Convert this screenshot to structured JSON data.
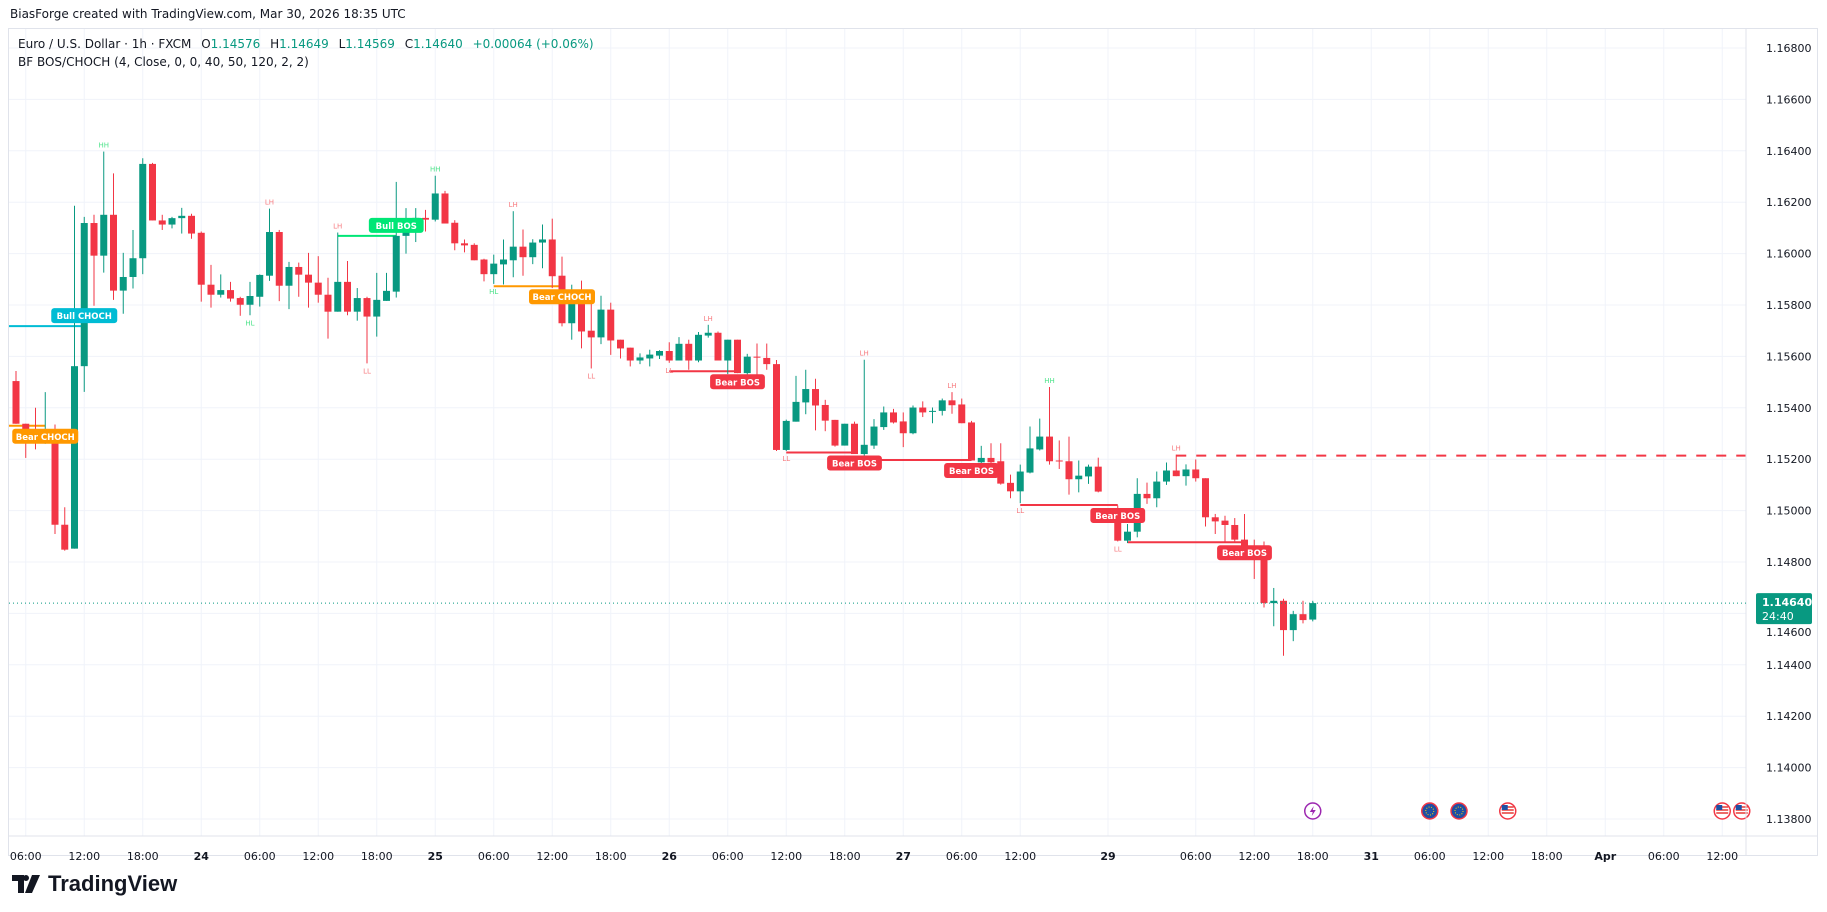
{
  "credit": "BiasForge created with TradingView.com, Mar 30, 2026 18:35 UTC",
  "legend": {
    "symbol": "Euro / U.S. Dollar · 1h · FXCM",
    "o_label": "O",
    "o": "1.14576",
    "h_label": "H",
    "h": "1.14649",
    "l_label": "L",
    "l": "1.14569",
    "c_label": "C",
    "c": "1.14640",
    "change": "+0.00064 (+0.06%)",
    "indicator": "BF BOS/CHOCH (4, Close, 0, 0, 40, 50, 120, 2, 2)"
  },
  "current_price": {
    "value": "1.14640",
    "countdown": "24:40",
    "color": "#089981"
  },
  "logo_text": "TradingView",
  "colors": {
    "up": "#089981",
    "down": "#f23645",
    "bull_choch": "#00bcd4",
    "bear_choch": "#ff9800",
    "bull_bos": "#00e676",
    "bear_bos": "#f23645",
    "swing_high_low_up": "#4de38a",
    "swing_high_low_down": "#f77c80"
  },
  "chart_data": {
    "type": "candlestick",
    "symbol": "EURUSD",
    "interval": "1h",
    "ylim": [
      1.137,
      1.1695
    ],
    "grid": true,
    "y_ticks": [
      "1.16800",
      "1.16600",
      "1.16400",
      "1.16200",
      "1.16000",
      "1.15800",
      "1.15600",
      "1.15400",
      "1.15200",
      "1.15000",
      "1.14800",
      "1.14600",
      "1.14400",
      "1.14200",
      "1.14000",
      "1.13800"
    ],
    "x_ticks": [
      {
        "label": "06:00",
        "bar": 1
      },
      {
        "label": "12:00",
        "bar": 7
      },
      {
        "label": "18:00",
        "bar": 13
      },
      {
        "label": "24",
        "bar": 19
      },
      {
        "label": "06:00",
        "bar": 25
      },
      {
        "label": "12:00",
        "bar": 31
      },
      {
        "label": "18:00",
        "bar": 37
      },
      {
        "label": "25",
        "bar": 43
      },
      {
        "label": "06:00",
        "bar": 49
      },
      {
        "label": "12:00",
        "bar": 55
      },
      {
        "label": "18:00",
        "bar": 61
      },
      {
        "label": "26",
        "bar": 67
      },
      {
        "label": "06:00",
        "bar": 73
      },
      {
        "label": "12:00",
        "bar": 79
      },
      {
        "label": "18:00",
        "bar": 85
      },
      {
        "label": "27",
        "bar": 91
      },
      {
        "label": "06:00",
        "bar": 97
      },
      {
        "label": "12:00",
        "bar": 103
      },
      {
        "label": "29",
        "bar": 112
      },
      {
        "label": "06:00",
        "bar": 121
      },
      {
        "label": "12:00",
        "bar": 127
      },
      {
        "label": "18:00",
        "bar": 133
      },
      {
        "label": "31",
        "bar": 139
      },
      {
        "label": "06:00",
        "bar": 145
      },
      {
        "label": "12:00",
        "bar": 151
      },
      {
        "label": "18:00",
        "bar": 157
      },
      {
        "label": "Apr",
        "bar": 163
      },
      {
        "label": "06:00",
        "bar": 169
      },
      {
        "label": "12:00",
        "bar": 175
      }
    ],
    "weekend_gap_after_candle": 112,
    "ohlc": [
      [
        1.15504,
        1.15543,
        1.15338,
        1.15338
      ],
      [
        1.15338,
        1.15338,
        1.15205,
        1.15299
      ],
      [
        1.15299,
        1.154,
        1.15238,
        1.1527
      ],
      [
        1.1527,
        1.15461,
        1.1526,
        1.15299
      ],
      [
        1.15299,
        1.15335,
        1.14909,
        1.14945
      ],
      [
        1.14945,
        1.15013,
        1.14844,
        1.14848
      ],
      [
        1.14852,
        1.16186,
        1.14852,
        1.15562
      ],
      [
        1.15562,
        1.16143,
        1.15462,
        1.16119
      ],
      [
        1.16119,
        1.16151,
        1.15797,
        1.15992
      ],
      [
        1.15992,
        1.16397,
        1.15926,
        1.16151
      ],
      [
        1.16151,
        1.16312,
        1.1582,
        1.15856
      ],
      [
        1.15856,
        1.16003,
        1.15766,
        1.15909
      ],
      [
        1.15909,
        1.16092,
        1.15864,
        1.15982
      ],
      [
        1.15982,
        1.16371,
        1.1592,
        1.16349
      ],
      [
        1.16349,
        1.16353,
        1.16129,
        1.16129
      ],
      [
        1.16129,
        1.16151,
        1.16092,
        1.16113
      ],
      [
        1.16113,
        1.16143,
        1.16098,
        1.16138
      ],
      [
        1.16138,
        1.16178,
        1.16078,
        1.16147
      ],
      [
        1.16147,
        1.16155,
        1.16058,
        1.16078
      ],
      [
        1.16081,
        1.16086,
        1.15813,
        1.15879
      ],
      [
        1.15879,
        1.15956,
        1.1579,
        1.1584
      ],
      [
        1.1584,
        1.15919,
        1.15829,
        1.15858
      ],
      [
        1.15858,
        1.1589,
        1.15813,
        1.15825
      ],
      [
        1.15827,
        1.15832,
        1.15758,
        1.15801
      ],
      [
        1.15801,
        1.1589,
        1.1576,
        1.15835
      ],
      [
        1.15832,
        1.15919,
        1.15794,
        1.15917
      ],
      [
        1.15914,
        1.16175,
        1.15894,
        1.16084
      ],
      [
        1.16084,
        1.16092,
        1.15815,
        1.15875
      ],
      [
        1.15875,
        1.15968,
        1.15784,
        1.15948
      ],
      [
        1.15948,
        1.15965,
        1.15832,
        1.15918
      ],
      [
        1.15918,
        1.16003,
        1.1579,
        1.15887
      ],
      [
        1.15887,
        1.1599,
        1.15809,
        1.1584
      ],
      [
        1.1584,
        1.15906,
        1.15669,
        1.15774
      ],
      [
        1.15774,
        1.16082,
        1.15774,
        1.1589
      ],
      [
        1.1589,
        1.15971,
        1.1576,
        1.15774
      ],
      [
        1.15774,
        1.15866,
        1.15739,
        1.15827
      ],
      [
        1.15827,
        1.15832,
        1.15573,
        1.15755
      ],
      [
        1.15755,
        1.15925,
        1.15677,
        1.1582
      ],
      [
        1.15816,
        1.15925,
        1.15816,
        1.15855
      ],
      [
        1.15852,
        1.16279,
        1.15829,
        1.16069
      ],
      [
        1.16069,
        1.16177,
        1.16,
        1.16087
      ],
      [
        1.16087,
        1.16177,
        1.16045,
        1.16139
      ],
      [
        1.16139,
        1.1617,
        1.16086,
        1.16132
      ],
      [
        1.16132,
        1.16303,
        1.16125,
        1.16234
      ],
      [
        1.16234,
        1.16244,
        1.16117,
        1.16117
      ],
      [
        1.1612,
        1.1613,
        1.16013,
        1.1604
      ],
      [
        1.1604,
        1.16055,
        1.16005,
        1.16032
      ],
      [
        1.16034,
        1.1604,
        1.15974,
        1.15974
      ],
      [
        1.15977,
        1.1598,
        1.15892,
        1.1592
      ],
      [
        1.1592,
        1.15996,
        1.15882,
        1.15961
      ],
      [
        1.15958,
        1.16055,
        1.1588,
        1.15977
      ],
      [
        1.15974,
        1.16165,
        1.15908,
        1.16027
      ],
      [
        1.16027,
        1.16094,
        1.15914,
        1.15986
      ],
      [
        1.15986,
        1.16056,
        1.15959,
        1.16043
      ],
      [
        1.16043,
        1.16113,
        1.15943,
        1.16055
      ],
      [
        1.16055,
        1.16136,
        1.15866,
        1.15912
      ],
      [
        1.15914,
        1.15988,
        1.15717,
        1.15729
      ],
      [
        1.15729,
        1.15879,
        1.15665,
        1.15858
      ],
      [
        1.15858,
        1.15895,
        1.15631,
        1.15697
      ],
      [
        1.157,
        1.15806,
        1.15553,
        1.15674
      ],
      [
        1.15674,
        1.15836,
        1.15648,
        1.15782
      ],
      [
        1.15782,
        1.15809,
        1.15606,
        1.15662
      ],
      [
        1.15665,
        1.15665,
        1.15592,
        1.15631
      ],
      [
        1.15634,
        1.15634,
        1.15561,
        1.15584
      ],
      [
        1.15584,
        1.15612,
        1.1557,
        1.15596
      ],
      [
        1.15592,
        1.15626,
        1.15561,
        1.15607
      ],
      [
        1.15603,
        1.15624,
        1.1559,
        1.15621
      ],
      [
        1.15621,
        1.15655,
        1.15575,
        1.15584
      ],
      [
        1.15584,
        1.15675,
        1.15584,
        1.15649
      ],
      [
        1.15649,
        1.15665,
        1.15548,
        1.15584
      ],
      [
        1.15584,
        1.15695,
        1.15577,
        1.15684
      ],
      [
        1.15681,
        1.15723,
        1.15673,
        1.15692
      ],
      [
        1.15692,
        1.15697,
        1.15584,
        1.15584
      ],
      [
        1.15584,
        1.15665,
        1.15531,
        1.15665
      ],
      [
        1.15665,
        1.15665,
        1.15535,
        1.15535
      ],
      [
        1.15535,
        1.1561,
        1.15479,
        1.15599
      ],
      [
        1.15599,
        1.1565,
        1.15527,
        1.15596
      ],
      [
        1.15594,
        1.1565,
        1.15548,
        1.1557
      ],
      [
        1.1557,
        1.15586,
        1.15232,
        1.15236
      ],
      [
        1.15236,
        1.15354,
        1.15232,
        1.15349
      ],
      [
        1.15346,
        1.15524,
        1.15346,
        1.15423
      ],
      [
        1.15421,
        1.15548,
        1.15375,
        1.15473
      ],
      [
        1.15473,
        1.15513,
        1.15312,
        1.15409
      ],
      [
        1.15411,
        1.15431,
        1.15309,
        1.1535
      ],
      [
        1.15353,
        1.15353,
        1.15249,
        1.15253
      ],
      [
        1.15253,
        1.15338,
        1.15253,
        1.15338
      ],
      [
        1.15338,
        1.15346,
        1.1522,
        1.1522
      ],
      [
        1.1522,
        1.15587,
        1.15197,
        1.15256
      ],
      [
        1.15253,
        1.15356,
        1.1524,
        1.15327
      ],
      [
        1.15325,
        1.15405,
        1.15314,
        1.15382
      ],
      [
        1.15382,
        1.15396,
        1.15339,
        1.15343
      ],
      [
        1.15347,
        1.15382,
        1.15247,
        1.15301
      ],
      [
        1.15301,
        1.15409,
        1.15297,
        1.15401
      ],
      [
        1.15401,
        1.15425,
        1.15364,
        1.15382
      ],
      [
        1.15385,
        1.15401,
        1.1534,
        1.15388
      ],
      [
        1.15388,
        1.15436,
        1.1537,
        1.15429
      ],
      [
        1.15429,
        1.15461,
        1.15377,
        1.1541
      ],
      [
        1.15413,
        1.15436,
        1.1534,
        1.1534
      ],
      [
        1.15343,
        1.15349,
        1.15195,
        1.15195
      ],
      [
        1.15188,
        1.15252,
        1.15158,
        1.15205
      ],
      [
        1.15205,
        1.15262,
        1.15158,
        1.15188
      ],
      [
        1.15192,
        1.15262,
        1.15101,
        1.15105
      ],
      [
        1.15108,
        1.1514,
        1.15048,
        1.15075
      ],
      [
        1.15075,
        1.15179,
        1.15029,
        1.15152
      ],
      [
        1.15148,
        1.15327,
        1.15145,
        1.15242
      ],
      [
        1.15238,
        1.15358,
        1.15234,
        1.15288
      ],
      [
        1.15288,
        1.15481,
        1.15179,
        1.15192
      ],
      [
        1.15195,
        1.15273,
        1.15162,
        1.15192
      ],
      [
        1.15192,
        1.15288,
        1.15062,
        1.15122
      ],
      [
        1.15122,
        1.15195,
        1.15071,
        1.15136
      ],
      [
        1.15133,
        1.15179,
        1.15104,
        1.15171
      ],
      [
        1.15171,
        1.15206,
        1.15071,
        1.15074
      ],
      [
        1.14987,
        1.1502,
        1.1488,
        1.14883
      ],
      [
        1.14883,
        1.14948,
        1.14874,
        1.14918
      ],
      [
        1.14918,
        1.15126,
        1.14896,
        1.15065
      ],
      [
        1.15065,
        1.15109,
        1.15026,
        1.15048
      ],
      [
        1.15048,
        1.15152,
        1.15013,
        1.15113
      ],
      [
        1.15113,
        1.15187,
        1.151,
        1.15156
      ],
      [
        1.15156,
        1.15218,
        1.15134,
        1.15134
      ],
      [
        1.15134,
        1.1518,
        1.15097,
        1.1516
      ],
      [
        1.1516,
        1.15199,
        1.15113,
        1.15126
      ],
      [
        1.15126,
        1.15126,
        1.14938,
        1.14974
      ],
      [
        1.14974,
        1.14987,
        1.14909,
        1.14958
      ],
      [
        1.14961,
        1.1498,
        1.14877,
        1.14944
      ],
      [
        1.14944,
        1.14971,
        1.1488,
        1.14887
      ],
      [
        1.14887,
        1.14987,
        1.14857,
        1.14857
      ],
      [
        1.1486,
        1.14887,
        1.14734,
        1.14857
      ],
      [
        1.14829,
        1.1488,
        1.14623,
        1.1464
      ],
      [
        1.1464,
        1.14699,
        1.1455,
        1.14649
      ],
      [
        1.14649,
        1.14657,
        1.14435,
        1.14535
      ],
      [
        1.14535,
        1.1461,
        1.14492,
        1.14597
      ],
      [
        1.14597,
        1.14649,
        1.14561,
        1.14574
      ],
      [
        1.14576,
        1.14649,
        1.14569,
        1.1464
      ]
    ],
    "structure_breaks": [
      {
        "label": "Bear CHOCH",
        "kind": "bear_choch",
        "from": 0,
        "to": 4,
        "price": 1.1533,
        "label_pos": "below"
      },
      {
        "label": "Bull CHOCH",
        "kind": "bull_choch",
        "from": 0,
        "to": 8,
        "price": 1.15718,
        "label_pos": "above"
      },
      {
        "label": "Bull BOS",
        "kind": "bull_bos",
        "from": 34,
        "to": 40,
        "price": 1.16069,
        "label_pos": "above"
      },
      {
        "label": "Bear CHOCH",
        "kind": "bear_choch",
        "from": 50,
        "to": 57,
        "price": 1.15873,
        "label_pos": "below"
      },
      {
        "label": "Bear BOS",
        "kind": "bear_bos",
        "from": 68,
        "to": 75,
        "price": 1.15542,
        "label_pos": "below"
      },
      {
        "label": "Bear BOS",
        "kind": "bear_bos",
        "from": 80,
        "to": 87,
        "price": 1.15226,
        "label_pos": "below"
      },
      {
        "label": "Bear BOS",
        "kind": "bear_bos",
        "from": 88,
        "to": 99,
        "price": 1.15197,
        "label_pos": "below"
      },
      {
        "label": "Bear BOS",
        "kind": "bear_bos",
        "from": 104,
        "to": 113,
        "price": 1.15022,
        "label_pos": "below"
      },
      {
        "label": "Bear BOS",
        "kind": "bear_bos",
        "from": 114,
        "to": 126,
        "price": 1.14877,
        "label_pos": "below"
      }
    ],
    "open_level": {
      "from": 119,
      "price": 1.15214,
      "style": "dashed",
      "kind": "bear_bos"
    },
    "swing_labels": [
      {
        "label": "HH",
        "bar": 10,
        "pos": "above"
      },
      {
        "label": "LH",
        "bar": 27,
        "pos": "above"
      },
      {
        "label": "HL",
        "bar": 25,
        "pos": "below"
      },
      {
        "label": "LH",
        "bar": 34,
        "pos": "above"
      },
      {
        "label": "LL",
        "bar": 37,
        "pos": "below"
      },
      {
        "label": "HH",
        "bar": 44,
        "pos": "above"
      },
      {
        "label": "HL",
        "bar": 50,
        "pos": "below"
      },
      {
        "label": "LH",
        "bar": 52,
        "pos": "above"
      },
      {
        "label": "LL",
        "bar": 60,
        "pos": "below"
      },
      {
        "label": "LL",
        "bar": 68,
        "pos": "below"
      },
      {
        "label": "LH",
        "bar": 72,
        "pos": "above"
      },
      {
        "label": "LL",
        "bar": 80,
        "pos": "below"
      },
      {
        "label": "LH",
        "bar": 88,
        "pos": "above"
      },
      {
        "label": "LH",
        "bar": 97,
        "pos": "above"
      },
      {
        "label": "LL",
        "bar": 104,
        "pos": "below"
      },
      {
        "label": "HH",
        "bar": 107,
        "pos": "above"
      },
      {
        "label": "LL",
        "bar": 113,
        "pos": "below"
      },
      {
        "label": "LH",
        "bar": 119,
        "pos": "above"
      }
    ],
    "events": [
      {
        "icon": "lightning-icon",
        "bar": 133
      },
      {
        "icon": "eu-flag-icon",
        "bar": 145
      },
      {
        "icon": "eu-flag-icon",
        "bar": 148
      },
      {
        "icon": "us-flag-icon",
        "bar": 153
      },
      {
        "icon": "us-flag-icon",
        "bar": 175
      },
      {
        "icon": "us-flag-icon",
        "bar": 177
      }
    ]
  }
}
